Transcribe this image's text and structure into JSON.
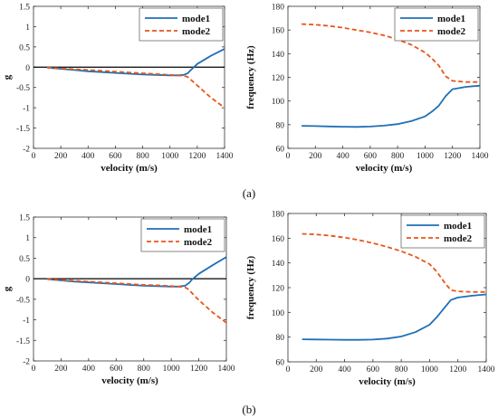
{
  "colors": {
    "mode1": "#1f6fb5",
    "mode2": "#e8561a",
    "zero_line": "#000000",
    "axis": "#333333"
  },
  "panel_labels": [
    "(a)",
    "(b)"
  ],
  "chart_data": [
    {
      "type": "line",
      "xlabel": "velocity (m/s)",
      "ylabel": "g",
      "xlim": [
        0,
        1400
      ],
      "ylim": [
        -2,
        1.5
      ],
      "xticks": [
        0,
        200,
        400,
        600,
        800,
        1000,
        1200,
        1400
      ],
      "yticks": [
        -2,
        -1.5,
        -1,
        -0.5,
        0,
        0.5,
        1,
        1.5
      ],
      "ytick_labels": [
        "-2",
        "-1.5",
        "-1",
        "-0.5",
        "0",
        "0.5",
        "1",
        "1.5"
      ],
      "zero_line": 0,
      "legend": "top-right",
      "series": [
        {
          "name": "mode1",
          "style": "solid",
          "x": [
            100,
            200,
            300,
            400,
            500,
            600,
            700,
            800,
            900,
            1000,
            1050,
            1100,
            1130,
            1150,
            1200,
            1300,
            1400
          ],
          "y": [
            -0.01,
            -0.04,
            -0.07,
            -0.1,
            -0.12,
            -0.14,
            -0.16,
            -0.18,
            -0.19,
            -0.2,
            -0.2,
            -0.19,
            -0.15,
            -0.08,
            0.08,
            0.28,
            0.45
          ]
        },
        {
          "name": "mode2",
          "style": "dashed",
          "x": [
            100,
            200,
            300,
            400,
            500,
            600,
            700,
            800,
            900,
            1000,
            1050,
            1100,
            1130,
            1150,
            1200,
            1300,
            1400
          ],
          "y": [
            -0.01,
            -0.03,
            -0.05,
            -0.07,
            -0.09,
            -0.11,
            -0.13,
            -0.15,
            -0.17,
            -0.19,
            -0.2,
            -0.21,
            -0.24,
            -0.3,
            -0.45,
            -0.75,
            -1.0
          ]
        }
      ]
    },
    {
      "type": "line",
      "xlabel": "velocity (m/s)",
      "ylabel": "frequency (Hz)",
      "xlim": [
        0,
        1400
      ],
      "ylim": [
        60,
        180
      ],
      "xticks": [
        0,
        200,
        400,
        600,
        800,
        1000,
        1200,
        1400
      ],
      "yticks": [
        60,
        80,
        100,
        120,
        140,
        160,
        180
      ],
      "ytick_labels": [
        "60",
        "80",
        "100",
        "120",
        "140",
        "160",
        "180"
      ],
      "legend": "top-right",
      "series": [
        {
          "name": "mode1",
          "style": "solid",
          "x": [
            100,
            200,
            300,
            400,
            500,
            600,
            700,
            800,
            900,
            1000,
            1050,
            1100,
            1150,
            1200,
            1300,
            1400
          ],
          "y": [
            79,
            78.8,
            78.5,
            78.3,
            78.1,
            78.4,
            79.2,
            80.5,
            83,
            87,
            91,
            96,
            104,
            110,
            112,
            113
          ]
        },
        {
          "name": "mode2",
          "style": "dashed",
          "x": [
            100,
            200,
            300,
            400,
            500,
            600,
            700,
            800,
            900,
            1000,
            1050,
            1100,
            1150,
            1200,
            1300,
            1400
          ],
          "y": [
            165,
            164.5,
            163.5,
            162,
            160,
            158,
            155.5,
            152,
            147.5,
            141,
            136,
            130,
            121,
            117,
            116,
            116
          ]
        }
      ]
    },
    {
      "type": "line",
      "xlabel": "velocity (m/s)",
      "ylabel": "g",
      "xlim": [
        0,
        1400
      ],
      "ylim": [
        -2,
        1.5
      ],
      "xticks": [
        0,
        200,
        400,
        600,
        800,
        1000,
        1200,
        1400
      ],
      "yticks": [
        -2,
        -1.5,
        -1,
        -0.5,
        0,
        0.5,
        1,
        1.5
      ],
      "ytick_labels": [
        "-2",
        "-1.5",
        "-1",
        "-0.5",
        "0",
        "0.5",
        "1",
        "1.5"
      ],
      "zero_line": 0,
      "legend": "top-right",
      "series": [
        {
          "name": "mode1",
          "style": "solid",
          "x": [
            100,
            200,
            300,
            400,
            500,
            600,
            700,
            800,
            900,
            1000,
            1050,
            1100,
            1130,
            1150,
            1200,
            1300,
            1400
          ],
          "y": [
            -0.01,
            -0.04,
            -0.07,
            -0.09,
            -0.11,
            -0.13,
            -0.15,
            -0.17,
            -0.18,
            -0.19,
            -0.19,
            -0.17,
            -0.1,
            -0.02,
            0.12,
            0.33,
            0.53
          ]
        },
        {
          "name": "mode2",
          "style": "dashed",
          "x": [
            100,
            200,
            300,
            400,
            500,
            600,
            700,
            800,
            900,
            1000,
            1050,
            1100,
            1130,
            1150,
            1200,
            1300,
            1400
          ],
          "y": [
            -0.01,
            -0.03,
            -0.05,
            -0.07,
            -0.09,
            -0.11,
            -0.13,
            -0.15,
            -0.16,
            -0.18,
            -0.19,
            -0.21,
            -0.27,
            -0.35,
            -0.52,
            -0.82,
            -1.07
          ]
        }
      ]
    },
    {
      "type": "line",
      "xlabel": "velocity (m/s)",
      "ylabel": "frequency (Hz)",
      "xlim": [
        0,
        1400
      ],
      "ylim": [
        60,
        180
      ],
      "xticks": [
        0,
        200,
        400,
        600,
        800,
        1000,
        1200,
        1400
      ],
      "yticks": [
        60,
        80,
        100,
        120,
        140,
        160,
        180
      ],
      "ytick_labels": [
        "60",
        "80",
        "100",
        "120",
        "140",
        "160",
        "180"
      ],
      "legend": "top-right",
      "series": [
        {
          "name": "mode1",
          "style": "solid",
          "x": [
            100,
            200,
            300,
            400,
            500,
            600,
            700,
            800,
            900,
            1000,
            1050,
            1100,
            1150,
            1200,
            1300,
            1400
          ],
          "y": [
            78.2,
            78.1,
            77.9,
            77.8,
            77.8,
            78,
            78.8,
            80.5,
            84,
            90,
            96,
            103,
            110,
            112,
            113.5,
            114.5
          ]
        },
        {
          "name": "mode2",
          "style": "dashed",
          "x": [
            100,
            200,
            300,
            400,
            500,
            600,
            700,
            800,
            900,
            1000,
            1050,
            1100,
            1150,
            1200,
            1300,
            1400
          ],
          "y": [
            163.5,
            163,
            162,
            160.5,
            158.5,
            156,
            153,
            149.5,
            145,
            139,
            133,
            125,
            118,
            117,
            116.5,
            116.5
          ]
        }
      ]
    }
  ]
}
